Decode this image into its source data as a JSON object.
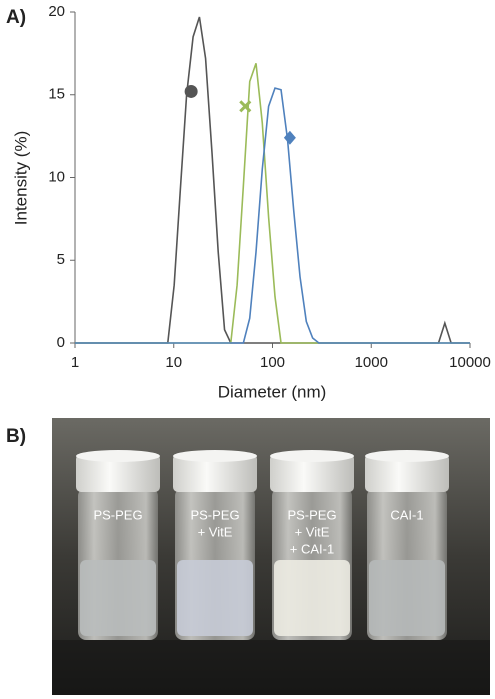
{
  "chart_data": {
    "type": "line",
    "panel_label": "A)",
    "xlabel": "Diameter (nm)",
    "ylabel": "Intensity (%)",
    "xscale": "log",
    "xlim": [
      1,
      10000
    ],
    "xticks": [
      1,
      10,
      100,
      1000,
      10000
    ],
    "ylim": [
      0,
      20
    ],
    "yticks": [
      0,
      5,
      10,
      15,
      20
    ],
    "series": [
      {
        "color": "#555555",
        "marker": {
          "shape": "circle",
          "x": 15,
          "y": 15.2
        },
        "x": [
          1,
          8.7,
          10.1,
          11.7,
          13.5,
          15.7,
          18.2,
          21.0,
          24.4,
          28.2,
          32.7,
          37.8,
          4800,
          5560,
          6440,
          10000
        ],
        "values": [
          0,
          0,
          3.5,
          9.4,
          15.0,
          18.5,
          19.7,
          17.2,
          11.5,
          5.5,
          0.8,
          0,
          0,
          1.2,
          0,
          0
        ]
      },
      {
        "color": "#9bbb59",
        "marker": {
          "shape": "cross",
          "x": 53,
          "y": 14.3
        },
        "x": [
          1,
          37.8,
          43.8,
          50.7,
          58.8,
          68.1,
          78.8,
          91.3,
          106,
          122,
          10000
        ],
        "values": [
          0,
          0,
          3.5,
          9.5,
          15.8,
          16.9,
          13.3,
          7.6,
          2.8,
          0,
          0
        ]
      },
      {
        "color": "#4f81bd",
        "marker": {
          "shape": "diamond",
          "x": 150,
          "y": 12.4
        },
        "x": [
          1,
          50.7,
          58.8,
          68.1,
          78.8,
          91.3,
          106,
          122,
          142,
          164,
          190,
          220,
          255,
          295,
          10000
        ],
        "values": [
          0,
          0,
          1.5,
          5.5,
          10.5,
          14.3,
          15.4,
          15.3,
          12.3,
          8.0,
          4.0,
          1.3,
          0.3,
          0,
          0
        ]
      }
    ]
  },
  "photo": {
    "panel_label": "B)",
    "vials": [
      [
        "PS-PEG"
      ],
      [
        "PS-PEG",
        "+ VitE"
      ],
      [
        "PS-PEG",
        "+ VitE",
        "+ CAI-1"
      ],
      [
        "CAI-1"
      ]
    ]
  }
}
